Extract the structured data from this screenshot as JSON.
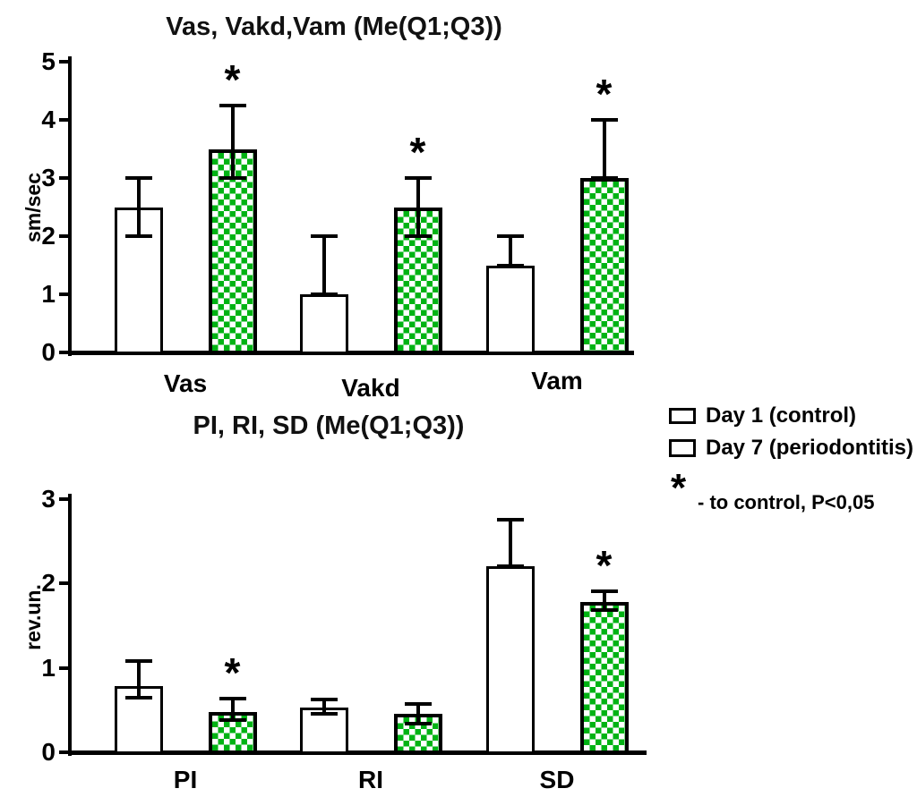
{
  "colors": {
    "checker_green": "#00B314",
    "ink": "#000000",
    "background": "#FFFFFF"
  },
  "chart_data": [
    {
      "type": "bar",
      "title": "Vas, Vakd,Vam (Me(Q1;Q3))",
      "ylabel": "sm/sec",
      "xlabel": "",
      "ylim": [
        0,
        5
      ],
      "yticks": [
        0,
        1,
        2,
        3,
        4,
        5
      ],
      "grid": false,
      "categories": [
        "Vas",
        "Vakd",
        "Vam"
      ],
      "series": [
        {
          "name": "Day 1 (control)",
          "style": "white",
          "values": [
            2.5,
            1.0,
            1.5
          ],
          "whisker_low": [
            2.0,
            1.0,
            1.5
          ],
          "whisker_high": [
            3.0,
            2.0,
            2.0
          ],
          "significant": [
            false,
            false,
            false
          ]
        },
        {
          "name": "Day 7 (periodontitis)",
          "style": "green-checker",
          "values": [
            3.5,
            2.5,
            3.0
          ],
          "whisker_low": [
            3.0,
            2.0,
            3.0
          ],
          "whisker_high": [
            4.25,
            3.0,
            4.0
          ],
          "significant": [
            true,
            true,
            true
          ]
        }
      ]
    },
    {
      "type": "bar",
      "title": "PI, RI, SD (Me(Q1;Q3))",
      "ylabel": "rev.un.",
      "xlabel": "",
      "ylim": [
        0,
        3
      ],
      "yticks": [
        0,
        1,
        2,
        3
      ],
      "grid": false,
      "categories": [
        "PI",
        "RI",
        "SD"
      ],
      "series": [
        {
          "name": "Day 1 (control)",
          "style": "white",
          "values": [
            0.78,
            0.53,
            2.2
          ],
          "whisker_low": [
            0.65,
            0.45,
            2.2
          ],
          "whisker_high": [
            1.08,
            0.62,
            2.75
          ],
          "significant": [
            false,
            false,
            false
          ]
        },
        {
          "name": "Day 7 (periodontitis)",
          "style": "green-checker",
          "values": [
            0.48,
            0.46,
            1.78
          ],
          "whisker_low": [
            0.38,
            0.34,
            1.68
          ],
          "whisker_high": [
            0.63,
            0.57,
            1.9
          ],
          "significant": [
            true,
            false,
            true
          ]
        }
      ]
    }
  ],
  "legend": {
    "position": "right",
    "items": [
      {
        "label": "Day 1 (control)",
        "swatch": "white"
      },
      {
        "label": "Day 7 (periodontitis)",
        "swatch": "green-checker"
      }
    ],
    "note_symbol": "*",
    "note_text": "- to control, P<0,05"
  }
}
